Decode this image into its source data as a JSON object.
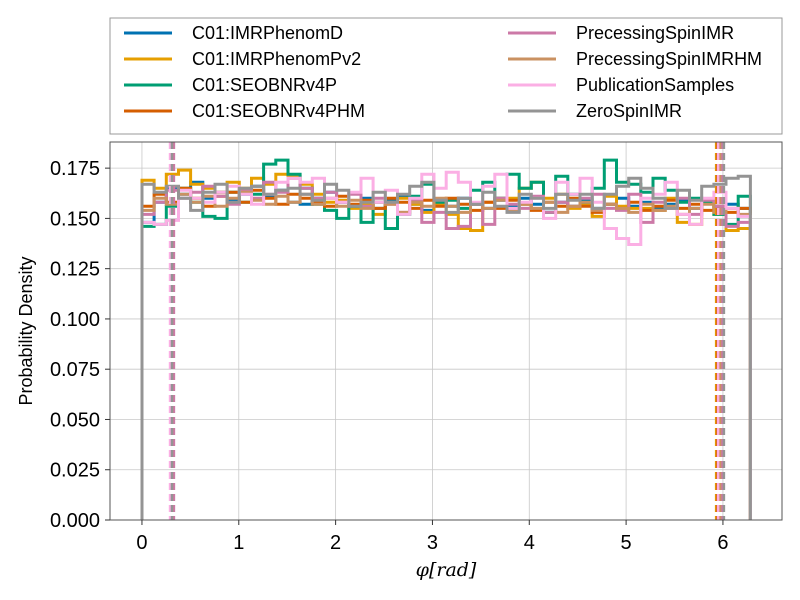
{
  "chart_data": {
    "type": "line",
    "subtype": "step-histogram",
    "xlabel": "φ[rad]",
    "ylabel": "Probability Density",
    "xlim": [
      -0.33,
      6.61
    ],
    "ylim": [
      0.0,
      0.188
    ],
    "xticks": [
      0,
      1,
      2,
      3,
      4,
      5,
      6
    ],
    "xtick_labels": [
      "0",
      "1",
      "2",
      "3",
      "4",
      "5",
      "6"
    ],
    "yticks": [
      0.0,
      0.025,
      0.05,
      0.075,
      0.1,
      0.125,
      0.15,
      0.175
    ],
    "ytick_labels": [
      "0.000",
      "0.025",
      "0.050",
      "0.075",
      "0.100",
      "0.125",
      "0.150",
      "0.175"
    ],
    "grid": true,
    "legend_position": "top-above",
    "legend_columns": 2,
    "bin_edges": [
      0.0,
      0.1257,
      0.2513,
      0.377,
      0.5027,
      0.6283,
      0.754,
      0.8796,
      1.0053,
      1.131,
      1.2566,
      1.3823,
      1.508,
      1.6336,
      1.7593,
      1.885,
      2.0106,
      2.1363,
      2.2619,
      2.3876,
      2.5133,
      2.6389,
      2.7646,
      2.8903,
      3.0159,
      3.1416,
      3.2673,
      3.3929,
      3.5186,
      3.6442,
      3.7699,
      3.8956,
      4.0212,
      4.1469,
      4.2726,
      4.3982,
      4.5239,
      4.6496,
      4.7752,
      4.9009,
      5.0265,
      5.1522,
      5.2779,
      5.4035,
      5.5292,
      5.6549,
      5.7805,
      5.9062,
      6.0319,
      6.1575,
      6.2832
    ],
    "series": [
      {
        "name": "C01:IMRPhenomD",
        "color": "#0072b2",
        "values": [
          0.148,
          0.158,
          0.165,
          0.162,
          0.168,
          0.16,
          0.163,
          0.159,
          0.162,
          0.166,
          0.161,
          0.164,
          0.158,
          0.157,
          0.16,
          0.163,
          0.158,
          0.156,
          0.16,
          0.155,
          0.159,
          0.161,
          0.157,
          0.154,
          0.158,
          0.156,
          0.16,
          0.157,
          0.155,
          0.159,
          0.156,
          0.16,
          0.157,
          0.153,
          0.158,
          0.156,
          0.159,
          0.155,
          0.157,
          0.16,
          0.156,
          0.158,
          0.155,
          0.157,
          0.159,
          0.155,
          0.158,
          0.156,
          0.157,
          0.155
        ],
        "vlines": [
          0.31,
          5.96
        ]
      },
      {
        "name": "C01:IMRPhenomPv2",
        "color": "#e69f00",
        "values": [
          0.169,
          0.165,
          0.172,
          0.174,
          0.167,
          0.165,
          0.163,
          0.168,
          0.165,
          0.17,
          0.167,
          0.172,
          0.171,
          0.167,
          0.162,
          0.158,
          0.159,
          0.155,
          0.157,
          0.152,
          0.158,
          0.16,
          0.157,
          0.153,
          0.157,
          0.152,
          0.145,
          0.144,
          0.158,
          0.16,
          0.16,
          0.165,
          0.168,
          0.16,
          0.162,
          0.155,
          0.157,
          0.151,
          0.161,
          0.156,
          0.155,
          0.155,
          0.154,
          0.16,
          0.148,
          0.147,
          0.159,
          0.152,
          0.144,
          0.145
        ],
        "vlines": [
          0.32,
          5.93
        ]
      },
      {
        "name": "C01:SEOBNRv4P",
        "color": "#009e73",
        "values": [
          0.146,
          0.147,
          0.156,
          0.165,
          0.158,
          0.151,
          0.15,
          0.163,
          0.158,
          0.162,
          0.177,
          0.179,
          0.172,
          0.165,
          0.157,
          0.154,
          0.15,
          0.156,
          0.148,
          0.158,
          0.145,
          0.152,
          0.161,
          0.167,
          0.158,
          0.159,
          0.155,
          0.164,
          0.168,
          0.16,
          0.172,
          0.165,
          0.168,
          0.153,
          0.171,
          0.162,
          0.158,
          0.165,
          0.179,
          0.168,
          0.167,
          0.163,
          0.17,
          0.164,
          0.158,
          0.16,
          0.158,
          0.152,
          0.147,
          0.161
        ],
        "vlines": [
          0.3,
          5.95
        ]
      },
      {
        "name": "C01:SEOBNRv4PHM",
        "color": "#d55e00",
        "values": [
          0.156,
          0.162,
          0.158,
          0.165,
          0.16,
          0.156,
          0.161,
          0.163,
          0.158,
          0.164,
          0.16,
          0.157,
          0.162,
          0.16,
          0.158,
          0.156,
          0.161,
          0.157,
          0.159,
          0.155,
          0.16,
          0.158,
          0.155,
          0.159,
          0.156,
          0.16,
          0.157,
          0.154,
          0.158,
          0.155,
          0.159,
          0.157,
          0.154,
          0.158,
          0.156,
          0.16,
          0.156,
          0.153,
          0.157,
          0.155,
          0.158,
          0.154,
          0.156,
          0.159,
          0.155,
          0.157,
          0.154,
          0.156,
          0.153,
          0.155
        ],
        "vlines": [
          0.3,
          5.94
        ]
      },
      {
        "name": "PrecessingSpinIMR",
        "color": "#cc79a7",
        "values": [
          0.152,
          0.158,
          0.164,
          0.16,
          0.163,
          0.166,
          0.161,
          0.157,
          0.164,
          0.16,
          0.168,
          0.163,
          0.17,
          0.165,
          0.16,
          0.163,
          0.158,
          0.162,
          0.156,
          0.16,
          0.157,
          0.153,
          0.159,
          0.148,
          0.153,
          0.145,
          0.146,
          0.157,
          0.147,
          0.16,
          0.157,
          0.155,
          0.161,
          0.153,
          0.158,
          0.156,
          0.16,
          0.162,
          0.155,
          0.154,
          0.162,
          0.148,
          0.158,
          0.155,
          0.16,
          0.152,
          0.159,
          0.156,
          0.146,
          0.148
        ],
        "vlines": [
          0.33,
          5.99
        ]
      },
      {
        "name": "PrecessingSpinIMRHM",
        "color": "#ca9161",
        "values": [
          0.154,
          0.16,
          0.157,
          0.162,
          0.158,
          0.161,
          0.156,
          0.16,
          0.163,
          0.159,
          0.157,
          0.161,
          0.158,
          0.162,
          0.157,
          0.16,
          0.156,
          0.159,
          0.155,
          0.158,
          0.157,
          0.153,
          0.158,
          0.156,
          0.16,
          0.156,
          0.153,
          0.157,
          0.155,
          0.159,
          0.154,
          0.157,
          0.155,
          0.158,
          0.153,
          0.156,
          0.158,
          0.154,
          0.157,
          0.155,
          0.153,
          0.157,
          0.154,
          0.156,
          0.152,
          0.155,
          0.157,
          0.153,
          0.155,
          0.152
        ],
        "vlines": [
          0.31,
          5.97
        ]
      },
      {
        "name": "PublicationSamples",
        "color": "#fbafe4",
        "values": [
          0.148,
          0.147,
          0.149,
          0.164,
          0.16,
          0.158,
          0.163,
          0.166,
          0.162,
          0.157,
          0.162,
          0.168,
          0.17,
          0.168,
          0.17,
          0.16,
          0.158,
          0.163,
          0.17,
          0.158,
          0.164,
          0.152,
          0.16,
          0.172,
          0.165,
          0.173,
          0.168,
          0.158,
          0.166,
          0.172,
          0.155,
          0.158,
          0.16,
          0.15,
          0.168,
          0.162,
          0.17,
          0.158,
          0.145,
          0.14,
          0.137,
          0.16,
          0.162,
          0.168,
          0.152,
          0.147,
          0.16,
          0.163,
          0.155,
          0.151
        ],
        "vlines": [
          0.29,
          5.95
        ]
      },
      {
        "name": "ZeroSpinIMR",
        "color": "#949494",
        "values": [
          0.167,
          0.163,
          0.166,
          0.16,
          0.154,
          0.163,
          0.167,
          0.158,
          0.165,
          0.166,
          0.162,
          0.164,
          0.165,
          0.162,
          0.159,
          0.167,
          0.164,
          0.156,
          0.158,
          0.163,
          0.158,
          0.162,
          0.166,
          0.168,
          0.159,
          0.153,
          0.16,
          0.157,
          0.163,
          0.156,
          0.153,
          0.162,
          0.16,
          0.155,
          0.162,
          0.159,
          0.162,
          0.155,
          0.162,
          0.166,
          0.17,
          0.165,
          0.16,
          0.155,
          0.164,
          0.159,
          0.166,
          0.167,
          0.17,
          0.171
        ],
        "vlines": [
          0.31,
          6.01
        ]
      }
    ]
  }
}
